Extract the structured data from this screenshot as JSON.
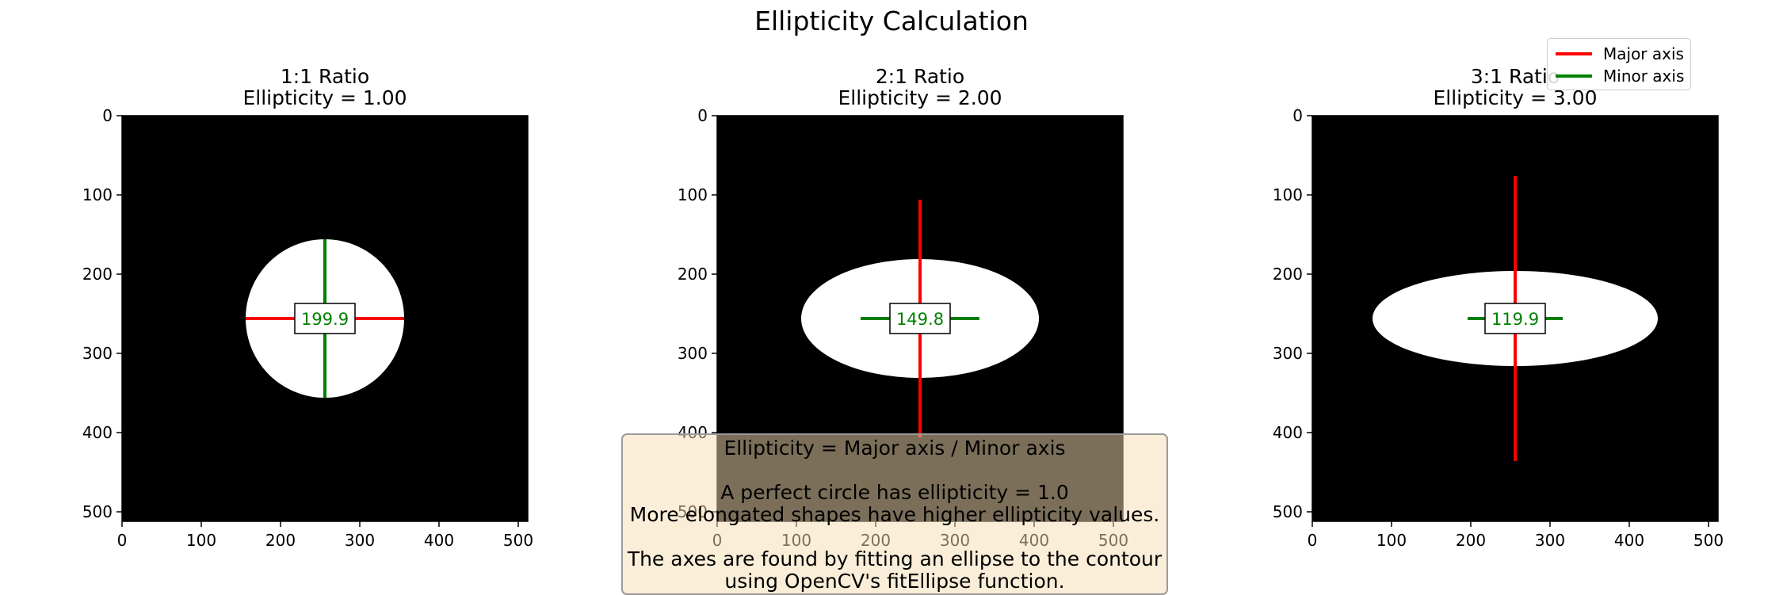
{
  "figure": {
    "title": "Ellipticity Calculation"
  },
  "legend": {
    "items": [
      {
        "label": "Major axis",
        "color": "#ff0000"
      },
      {
        "label": "Minor axis",
        "color": "#008000"
      }
    ]
  },
  "note": {
    "lines": [
      "Ellipticity = Major axis / Minor axis",
      "",
      "A perfect circle has ellipticity = 1.0",
      "More elongated shapes have higher ellipticity values.",
      "",
      "The axes are found by fitting an ellipse to the contour",
      "using OpenCV's fitEllipse function."
    ]
  },
  "chart_data": [
    {
      "type": "image",
      "title": "1:1 Ratio\nEllipticity = 1.00",
      "title_lines": [
        "1:1 Ratio",
        "Ellipticity = 1.00"
      ],
      "xlim": [
        0,
        512
      ],
      "ylim": [
        512,
        0
      ],
      "xticks": [
        0,
        100,
        200,
        300,
        400,
        500
      ],
      "yticks": [
        0,
        100,
        200,
        300,
        400,
        500
      ],
      "background": "#000000",
      "ellipse": {
        "center": [
          256,
          256
        ],
        "semi_x": 100,
        "semi_y": 100,
        "fill": "#ffffff"
      },
      "major_axis": {
        "from": [
          156,
          256
        ],
        "to": [
          356,
          256
        ],
        "color": "#ff0000"
      },
      "minor_axis": {
        "from": [
          256,
          156
        ],
        "to": [
          256,
          356
        ],
        "color": "#008000"
      },
      "annotation": "199.9"
    },
    {
      "type": "image",
      "title": "2:1 Ratio\nEllipticity = 2.00",
      "title_lines": [
        "2:1 Ratio",
        "Ellipticity = 2.00"
      ],
      "xlim": [
        0,
        512
      ],
      "ylim": [
        512,
        0
      ],
      "xticks": [
        0,
        100,
        200,
        300,
        400,
        500
      ],
      "yticks": [
        0,
        100,
        200,
        300,
        400,
        500
      ],
      "background": "#000000",
      "ellipse": {
        "center": [
          256,
          256
        ],
        "semi_x": 150,
        "semi_y": 75,
        "fill": "#ffffff"
      },
      "major_axis": {
        "from": [
          256,
          106
        ],
        "to": [
          256,
          406
        ],
        "color": "#ff0000"
      },
      "minor_axis": {
        "from": [
          181,
          256
        ],
        "to": [
          331,
          256
        ],
        "color": "#008000"
      },
      "annotation": "149.8"
    },
    {
      "type": "image",
      "title": "3:1 Ratio\nEllipticity = 3.00",
      "title_lines": [
        "3:1 Ratio",
        "Ellipticity = 3.00"
      ],
      "xlim": [
        0,
        512
      ],
      "ylim": [
        512,
        0
      ],
      "xticks": [
        0,
        100,
        200,
        300,
        400,
        500
      ],
      "yticks": [
        0,
        100,
        200,
        300,
        400,
        500
      ],
      "background": "#000000",
      "ellipse": {
        "center": [
          256,
          256
        ],
        "semi_x": 180,
        "semi_y": 60,
        "fill": "#ffffff"
      },
      "major_axis": {
        "from": [
          256,
          76
        ],
        "to": [
          256,
          436
        ],
        "color": "#ff0000"
      },
      "minor_axis": {
        "from": [
          196,
          256
        ],
        "to": [
          316,
          256
        ],
        "color": "#008000"
      },
      "annotation": "119.9"
    }
  ]
}
